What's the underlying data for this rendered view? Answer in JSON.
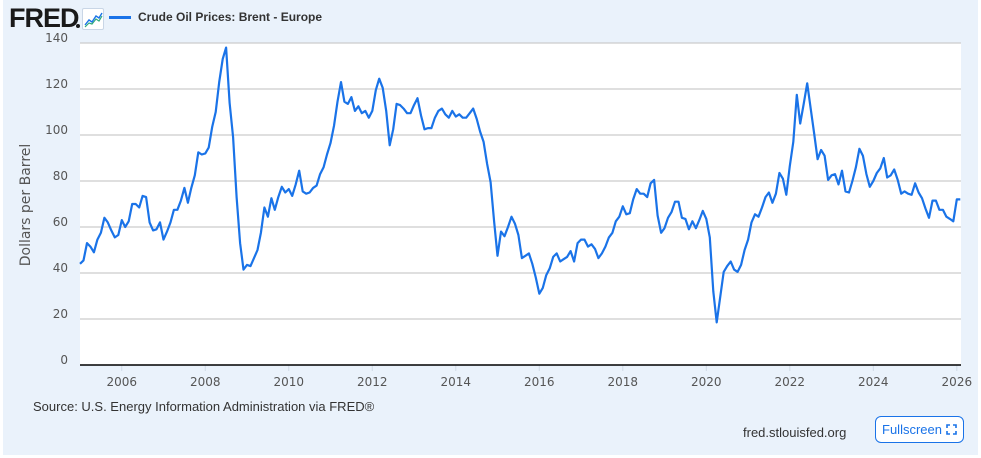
{
  "header": {
    "logo_text": "FRED",
    "logo_icon": "line-chart-icon",
    "legend_label": "Crude Oil Prices: Brent - Europe"
  },
  "footer": {
    "source": "Source: U.S. Energy Information Administration via FRED®",
    "site": "fred.stlouisfed.org",
    "fullscreen_label": "Fullscreen",
    "fullscreen_icon": "expand-icon"
  },
  "colors": {
    "line": "#1a73e8",
    "panel": "#eaf2fb",
    "grid": "#cccccc"
  },
  "chart_data": {
    "type": "line",
    "title": "Crude Oil Prices: Brent - Europe",
    "xlabel": "",
    "ylabel": "Dollars per Barrel",
    "ylim": [
      0,
      140
    ],
    "xlim": [
      2005.0,
      2026.1
    ],
    "yticks": [
      0,
      20,
      40,
      60,
      80,
      100,
      120,
      140
    ],
    "xticks": [
      2006,
      2008,
      2010,
      2012,
      2014,
      2016,
      2018,
      2020,
      2022,
      2024,
      2026
    ],
    "grid": true,
    "legend": "top-left",
    "series": [
      {
        "name": "Crude Oil Prices: Brent - Europe",
        "start": "2005-01",
        "frequency": "monthly",
        "values": [
          44,
          45.5,
          53,
          51.5,
          49,
          54.5,
          57.5,
          64,
          62,
          58.5,
          55.5,
          56.5,
          63,
          60,
          62.5,
          70,
          70,
          68.5,
          73.5,
          73,
          62,
          58.5,
          59,
          62,
          54.5,
          58,
          62,
          67.5,
          67.5,
          71.5,
          77,
          70.5,
          77,
          82.5,
          92.5,
          91.5,
          92,
          94.5,
          103.5,
          110,
          123,
          133,
          138,
          114,
          99,
          73,
          53,
          41.5,
          43.5,
          43,
          46.5,
          50,
          57.5,
          68.5,
          64.5,
          72.5,
          67.5,
          73,
          77.5,
          75,
          76.5,
          73.5,
          78.5,
          84.5,
          75.5,
          74.5,
          75,
          77,
          78,
          83,
          86,
          91.5,
          96.5,
          104,
          114.5,
          123,
          114.5,
          113.5,
          116.5,
          110.5,
          112.5,
          109.5,
          110.5,
          107.5,
          110.5,
          119.5,
          124.5,
          120.5,
          110.5,
          95.5,
          102.5,
          113.5,
          113,
          111.5,
          109.5,
          109.5,
          113,
          116,
          108.5,
          102.5,
          103,
          103,
          107.5,
          110.5,
          111.5,
          109,
          107.5,
          110.5,
          108,
          109,
          107.5,
          107.5,
          109.5,
          111.5,
          107,
          101.5,
          97,
          87.5,
          79.5,
          62.5,
          47.5,
          58,
          56,
          60,
          64.5,
          61.5,
          56.5,
          46.5,
          47.5,
          48.5,
          44,
          38,
          31,
          33.5,
          39,
          42,
          47,
          48.5,
          45,
          46,
          47,
          49.5,
          45,
          53,
          54.5,
          54.5,
          51.5,
          52.5,
          50.5,
          46.5,
          48.5,
          51.5,
          55.5,
          57.5,
          62.5,
          64.5,
          69,
          65.5,
          66,
          72,
          76.5,
          74.5,
          74.5,
          73,
          79,
          80.5,
          65,
          57.5,
          59.5,
          64,
          66.5,
          71,
          71,
          64,
          63.5,
          59,
          62.5,
          59.5,
          63,
          67,
          63.5,
          55.5,
          32,
          18.5,
          29.5,
          40.5,
          43,
          45,
          41.5,
          40.5,
          43.5,
          50,
          54.5,
          62,
          65.5,
          64.5,
          68.5,
          73,
          75,
          70.5,
          74.5,
          83.5,
          81,
          74,
          86.5,
          97,
          117.5,
          105,
          113.5,
          122.5,
          111.5,
          100.5,
          89.5,
          93.5,
          91,
          80.5,
          82.5,
          83,
          78.5,
          84.5,
          75.5,
          75,
          80,
          86,
          94,
          91,
          83,
          77.5,
          80,
          83.5,
          85.5,
          90,
          81.5,
          82.5,
          85,
          80.5,
          74.5,
          75.5,
          74.5,
          74,
          79,
          75,
          72.5,
          68,
          64,
          71.5,
          71.5,
          67.5,
          67.5,
          64.5,
          63.5,
          62.5,
          72,
          72
        ]
      }
    ]
  }
}
